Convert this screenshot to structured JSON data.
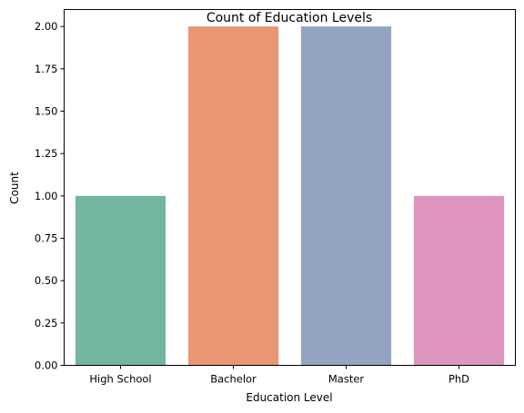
{
  "chart_data": {
    "type": "bar",
    "title": "Count of Education Levels",
    "xlabel": "Education Level",
    "ylabel": "Count",
    "categories": [
      "High School",
      "Bachelor",
      "Master",
      "PhD"
    ],
    "values": [
      1,
      2,
      2,
      1
    ],
    "colors": [
      "#73b59f",
      "#e99674",
      "#93a4c3",
      "#dd95bf"
    ],
    "ylim": [
      0,
      2.1
    ],
    "yticks": [
      0.0,
      0.25,
      0.5,
      0.75,
      1.0,
      1.25,
      1.5,
      1.75,
      2.0
    ],
    "ytick_labels": [
      "0.00",
      "0.25",
      "0.50",
      "0.75",
      "1.00",
      "1.25",
      "1.50",
      "1.75",
      "2.00"
    ],
    "grid": false,
    "legend": "none"
  }
}
